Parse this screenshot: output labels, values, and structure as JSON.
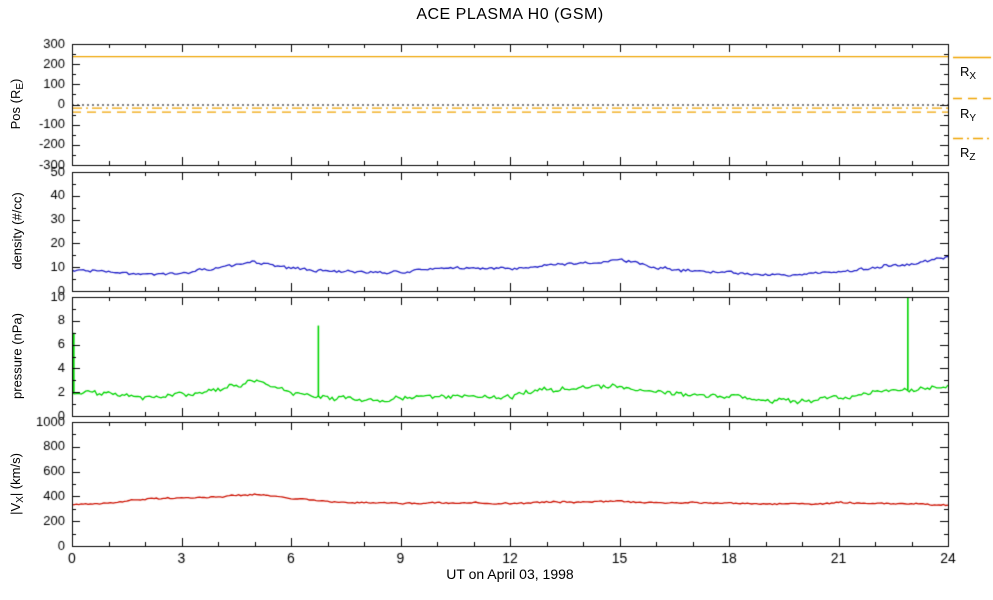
{
  "labels": {
    "title": "ACE PLASMA H0 (GSM)",
    "xlabel": "UT on April 03, 1998",
    "ylabels": {
      "pos": {
        "pre": "Pos (R",
        "sub": "E",
        "post": ")"
      },
      "density": "density (#/cc)",
      "pressure": "pressure (nPa)",
      "velocity": {
        "pre": "|V",
        "sub": "X",
        "post": "| (km/s)"
      }
    },
    "legend": [
      {
        "pre": "R",
        "sub": "X",
        "style": "solid"
      },
      {
        "pre": "R",
        "sub": "Y",
        "style": "dashed"
      },
      {
        "pre": "R",
        "sub": "Z",
        "style": "dashdot"
      }
    ]
  },
  "colors": {
    "orange": "#EFA400",
    "blue": "#2121C8",
    "green": "#00D400",
    "red": "#CC1100",
    "axis": "#000000"
  },
  "x_axis": {
    "lim": [
      0,
      24
    ],
    "ticks": [
      0,
      3,
      6,
      9,
      12,
      15,
      18,
      21,
      24
    ],
    "minor_step": 1,
    "label": "UT on April 03, 1998"
  },
  "chart_data": [
    {
      "type": "line",
      "ylabel": "Pos (R_E)",
      "ylim": [
        -300,
        300
      ],
      "yticks": [
        -300,
        -200,
        -100,
        0,
        100,
        200,
        300
      ],
      "ref_lines": [
        {
          "name": "R_X",
          "value": 240,
          "style": "solid",
          "color": "#EFA400"
        },
        {
          "name": "R_Y",
          "value": -35,
          "style": "dashed",
          "color": "#EFA400"
        },
        {
          "name": "R_Z",
          "value": -15,
          "style": "dashdot",
          "color": "#EFA400"
        },
        {
          "name": "zero",
          "value": 0,
          "style": "dotted",
          "color": "#000000"
        }
      ]
    },
    {
      "type": "line",
      "ylabel": "density (#/cc)",
      "ylim": [
        0,
        50
      ],
      "yticks": [
        0,
        10,
        20,
        30,
        40,
        50
      ],
      "color": "#2121C8",
      "jitter": 0.7,
      "x": [
        0,
        1,
        2,
        3,
        4,
        5,
        6,
        7,
        8,
        9,
        10,
        11,
        12,
        13,
        14,
        15,
        16,
        17,
        18,
        19,
        20,
        21,
        22,
        23,
        24
      ],
      "values": [
        8.5,
        8.5,
        7.0,
        8.0,
        9.5,
        12.5,
        9.5,
        8.5,
        8.0,
        8.0,
        9.5,
        9.5,
        9.0,
        11.0,
        12.0,
        13.0,
        10.0,
        8.5,
        8.0,
        7.0,
        7.0,
        8.0,
        10.0,
        11.5,
        14.5
      ]
    },
    {
      "type": "line",
      "ylabel": "pressure (nPa)",
      "ylim": [
        0,
        10
      ],
      "yticks": [
        0,
        2,
        4,
        6,
        8,
        10
      ],
      "color": "#00D400",
      "jitter": 0.22,
      "x": [
        0,
        1,
        2,
        3,
        4,
        5,
        6,
        7,
        8,
        9,
        10,
        11,
        12,
        13,
        14,
        15,
        16,
        17,
        18,
        19,
        20,
        21,
        22,
        23,
        24
      ],
      "values": [
        1.9,
        1.8,
        1.6,
        1.8,
        2.2,
        2.9,
        2.0,
        1.5,
        1.4,
        1.5,
        1.8,
        1.7,
        1.6,
        2.2,
        2.4,
        2.5,
        2.1,
        1.8,
        1.7,
        1.4,
        1.3,
        1.5,
        2.0,
        2.2,
        2.6
      ],
      "spikes": [
        {
          "x": 0.05,
          "y": 7.0
        },
        {
          "x": 6.75,
          "y": 7.6
        },
        {
          "x": 22.9,
          "y": 10.0
        }
      ]
    },
    {
      "type": "line",
      "ylabel": "|V_X| (km/s)",
      "ylim": [
        0,
        1000
      ],
      "yticks": [
        0,
        200,
        400,
        600,
        800,
        1000
      ],
      "color": "#CC1100",
      "jitter": 7,
      "x": [
        0,
        1,
        2,
        3,
        4,
        5,
        6,
        7,
        8,
        9,
        10,
        11,
        12,
        13,
        14,
        15,
        16,
        17,
        18,
        19,
        20,
        21,
        22,
        23,
        24
      ],
      "values": [
        330,
        345,
        380,
        390,
        395,
        415,
        385,
        360,
        350,
        345,
        350,
        345,
        340,
        350,
        355,
        360,
        350,
        350,
        345,
        340,
        340,
        350,
        345,
        340,
        330
      ]
    }
  ]
}
